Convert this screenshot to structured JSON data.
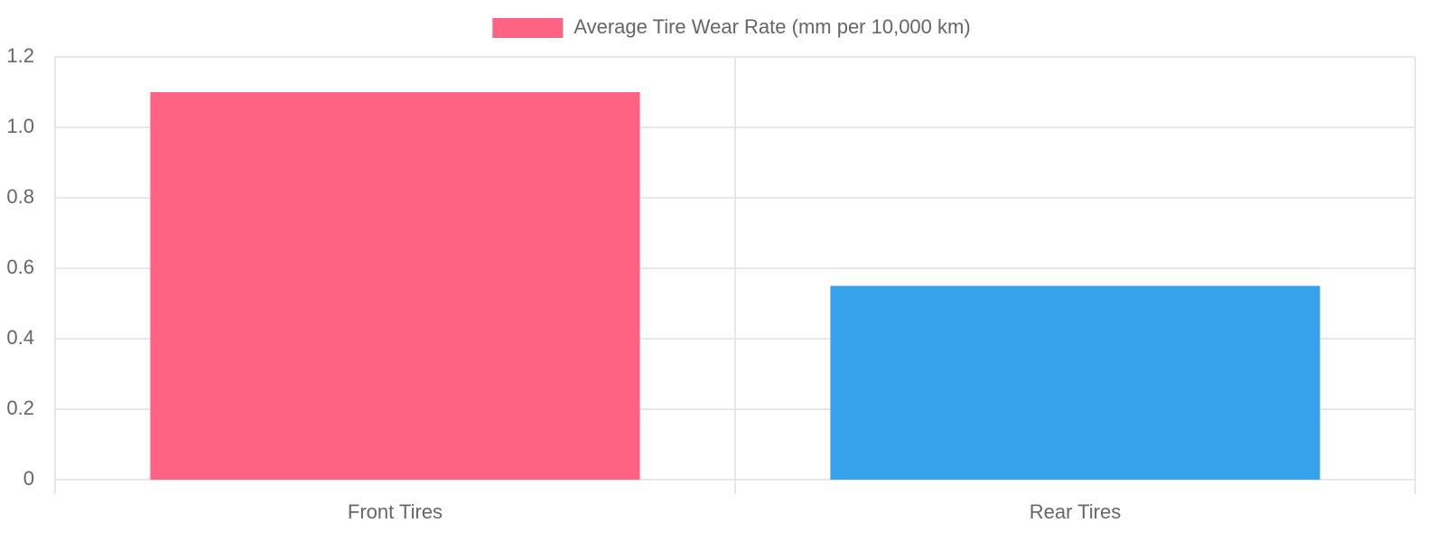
{
  "chart_data": {
    "type": "bar",
    "categories": [
      "Front Tires",
      "Rear Tires"
    ],
    "series": [
      {
        "name": "Average Tire Wear Rate (mm per 10,000 km)",
        "colors": [
          "#ff6384",
          "#36a2eb"
        ],
        "values": [
          1.1,
          0.55
        ]
      }
    ],
    "ylim": [
      0,
      1.2
    ],
    "yticks": [
      0,
      0.2,
      0.4,
      0.6,
      0.8,
      {
        "value": 1,
        "label": "1.0"
      },
      1.2
    ],
    "grid": true,
    "legend": "top"
  }
}
